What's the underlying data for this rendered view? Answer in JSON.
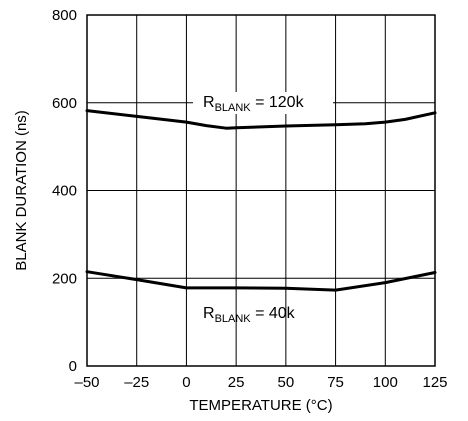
{
  "chart_data": {
    "type": "line",
    "title": "",
    "xlabel": "TEMPERATURE (°C)",
    "ylabel": "BLANK DURATION (ns)",
    "xlim": [
      -50,
      125
    ],
    "ylim": [
      0,
      800
    ],
    "x_ticks": [
      -50,
      -25,
      0,
      25,
      50,
      75,
      100,
      125
    ],
    "x_tick_labels": [
      "–50",
      "–25",
      "0",
      "25",
      "50",
      "75",
      "100",
      "125"
    ],
    "y_ticks": [
      0,
      200,
      400,
      600,
      800
    ],
    "y_tick_labels": [
      "0",
      "200",
      "400",
      "600",
      "800"
    ],
    "grid": true,
    "legend": "none",
    "series": [
      {
        "label_main": "R",
        "label_sub": "BLANK",
        "label_rest": " = 120k",
        "x": [
          -50,
          -25,
          0,
          10,
          20,
          25,
          50,
          75,
          90,
          100,
          110,
          125
        ],
        "y": [
          582,
          569,
          556,
          548,
          542,
          543,
          547,
          550,
          552,
          556,
          562,
          577
        ]
      },
      {
        "label_main": "R",
        "label_sub": "BLANK",
        "label_rest": " = 40k",
        "x": [
          -50,
          -25,
          0,
          25,
          50,
          75,
          100,
          125
        ],
        "y": [
          215,
          197,
          178,
          178,
          177,
          173,
          190,
          213
        ]
      }
    ]
  }
}
